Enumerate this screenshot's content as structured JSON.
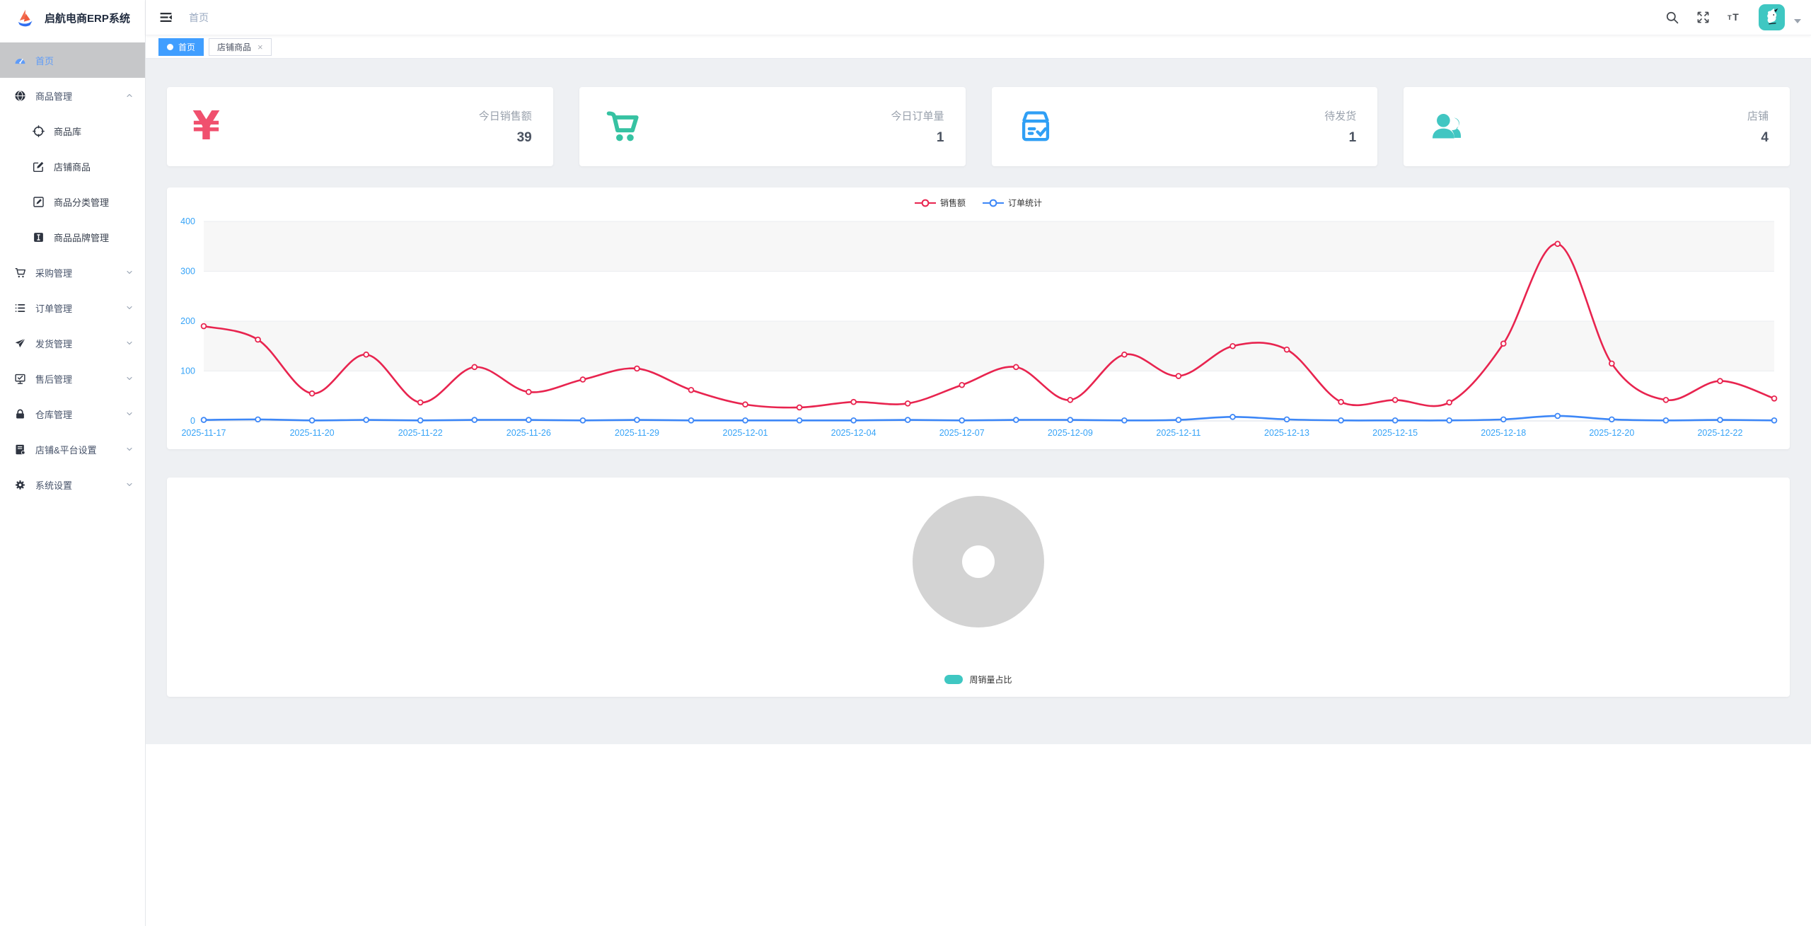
{
  "app": {
    "title": "启航电商ERP系统"
  },
  "sidebar": {
    "items": [
      {
        "id": "home",
        "icon": "dashboard-icon",
        "label": "首页",
        "active": true
      },
      {
        "id": "goods",
        "icon": "globe-icon",
        "label": "商品管理",
        "expanded": true,
        "children": [
          {
            "id": "goods-lib",
            "icon": "compass-icon",
            "label": "商品库"
          },
          {
            "id": "shop-goods",
            "icon": "edit-icon",
            "label": "店铺商品"
          },
          {
            "id": "goods-category",
            "icon": "edit-square-icon",
            "label": "商品分类管理"
          },
          {
            "id": "goods-brand",
            "icon": "brand-icon",
            "label": "商品品牌管理"
          }
        ]
      },
      {
        "id": "purchase",
        "icon": "cart-icon",
        "label": "采购管理",
        "expanded": false
      },
      {
        "id": "orders",
        "icon": "list-icon",
        "label": "订单管理",
        "expanded": false
      },
      {
        "id": "shipping",
        "icon": "send-icon",
        "label": "发货管理",
        "expanded": false
      },
      {
        "id": "aftersale",
        "icon": "monitor-check-icon",
        "label": "售后管理",
        "expanded": false
      },
      {
        "id": "warehouse",
        "icon": "lock-icon",
        "label": "仓库管理",
        "expanded": false
      },
      {
        "id": "shop-platform",
        "icon": "book-icon",
        "label": "店铺&平台设置",
        "expanded": false
      },
      {
        "id": "system",
        "icon": "gear-icon",
        "label": "系统设置",
        "expanded": false
      }
    ]
  },
  "topbar": {
    "breadcrumb": "首页"
  },
  "tabs": [
    {
      "label": "首页",
      "active": true,
      "closable": false
    },
    {
      "label": "店铺商品",
      "active": false,
      "closable": true
    }
  ],
  "stat_cards": [
    {
      "icon": "yen-icon",
      "icon_char": "¥",
      "icon_color": "#f0506e",
      "label": "今日销售额",
      "value": "39"
    },
    {
      "icon": "cart-solid-icon",
      "icon_color": "#36c2a2",
      "label": "今日订单量",
      "value": "1"
    },
    {
      "icon": "box-check-icon",
      "icon_color": "#2f9ff5",
      "label": "待发货",
      "value": "1"
    },
    {
      "icon": "users-icon",
      "icon_color": "#41c6c2",
      "label": "店铺",
      "value": "4"
    }
  ],
  "chart_data": [
    {
      "type": "line",
      "title": "",
      "legend": [
        {
          "name": "销售额",
          "color": "#e8244f"
        },
        {
          "name": "订单统计",
          "color": "#3d87f7"
        }
      ],
      "legend_position": "top-center",
      "x_labels": [
        "2025-11-17",
        "2025-11-20",
        "2025-11-22",
        "2025-11-26",
        "2025-11-29",
        "2025-12-01",
        "2025-12-04",
        "2025-12-07",
        "2025-12-09",
        "2025-12-11",
        "2025-12-13",
        "2025-12-15",
        "2025-12-18",
        "2025-12-20",
        "2025-12-22"
      ],
      "label_every": 2,
      "series": [
        {
          "name": "销售额",
          "color": "#e8244f",
          "values": [
            190,
            163,
            55,
            133,
            37,
            108,
            58,
            83,
            105,
            62,
            33,
            27,
            38,
            35,
            72,
            108,
            42,
            133,
            90,
            150,
            143,
            38,
            42,
            37,
            155,
            355,
            115,
            42,
            80,
            45
          ]
        },
        {
          "name": "订单统计",
          "color": "#3d87f7",
          "values": [
            2,
            3,
            1,
            2,
            1,
            2,
            2,
            1,
            2,
            1,
            1,
            1,
            1,
            2,
            1,
            2,
            2,
            1,
            2,
            8,
            3,
            1,
            1,
            1,
            3,
            10,
            3,
            1,
            2,
            1
          ]
        }
      ],
      "ylim": [
        0,
        400
      ],
      "y_ticks": [
        0,
        100,
        200,
        300,
        400
      ],
      "axis_label_color": "#36a3f7",
      "grid_bands": [
        "#f7f7f7",
        "#ffffff"
      ],
      "smooth": true
    },
    {
      "type": "pie",
      "legend": [
        {
          "name": "周销量占比",
          "color": "#3fc7c2"
        }
      ],
      "values": [],
      "placeholder": true,
      "placeholder_color": "#d3d3d3",
      "legend_position": "bottom-center"
    }
  ],
  "colors": {
    "accent_blue": "#409eff",
    "axis_label": "#36a3f7",
    "sales_line": "#e8244f",
    "orders_line": "#3d87f7",
    "teal": "#3fc7c2",
    "content_bg": "#eef0f3",
    "sidebar_active_bg": "#c6c7c9"
  }
}
